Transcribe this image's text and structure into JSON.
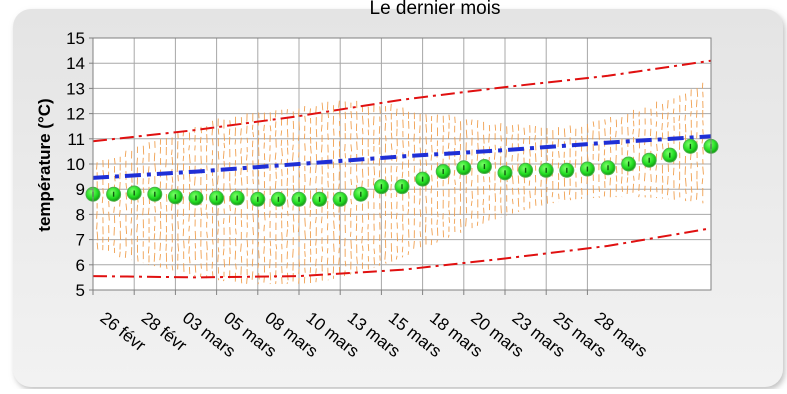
{
  "chart_data": {
    "type": "line",
    "title": "Le dernier mois",
    "ylabel": "température (°C)",
    "xlabel": "",
    "ylim": [
      5,
      15
    ],
    "yticks": [
      5,
      6,
      7,
      8,
      9,
      10,
      11,
      12,
      13,
      14,
      15
    ],
    "xlim": [
      0,
      30
    ],
    "grid": true,
    "legend": "none",
    "date_ticks": [
      {
        "x": 0,
        "label": "26 févr"
      },
      {
        "x": 2,
        "label": "28 févr"
      },
      {
        "x": 4,
        "label": "03 mars"
      },
      {
        "x": 6,
        "label": "05 mars"
      },
      {
        "x": 8,
        "label": "08 mars"
      },
      {
        "x": 10,
        "label": "10 mars"
      },
      {
        "x": 12,
        "label": "13 mars"
      },
      {
        "x": 14,
        "label": "15 mars"
      },
      {
        "x": 16,
        "label": "18 mars"
      },
      {
        "x": 18,
        "label": "20 mars"
      },
      {
        "x": 20,
        "label": "23 mars"
      },
      {
        "x": 22,
        "label": "25 mars"
      },
      {
        "x": 24,
        "label": "28 mars"
      }
    ],
    "series": [
      {
        "role": "daily-mean",
        "color": "#22dd22",
        "x": [
          0,
          1,
          2,
          3,
          4,
          5,
          6,
          7,
          8,
          9,
          10,
          11,
          12,
          13,
          14,
          15,
          16,
          17,
          18,
          19,
          20,
          21,
          22,
          23,
          24,
          25,
          26,
          27,
          28,
          29,
          30
        ],
        "values": [
          8.8,
          8.8,
          8.85,
          8.8,
          8.7,
          8.65,
          8.65,
          8.65,
          8.6,
          8.6,
          8.6,
          8.6,
          8.6,
          8.8,
          9.1,
          9.1,
          9.4,
          9.7,
          9.85,
          9.9,
          9.65,
          9.75,
          9.75,
          9.75,
          9.8,
          9.85,
          10.0,
          10.15,
          10.35,
          10.7,
          10.7
        ]
      },
      {
        "role": "normal-mean",
        "color": "#1f2fd6",
        "x": [
          0,
          5,
          10,
          15,
          20,
          25,
          30
        ],
        "values": [
          9.45,
          9.7,
          10.0,
          10.3,
          10.55,
          10.85,
          11.1
        ]
      },
      {
        "role": "upper-band",
        "color": "#e01010",
        "x": [
          0,
          5,
          10,
          15,
          20,
          25,
          30
        ],
        "values": [
          10.9,
          11.35,
          11.9,
          12.55,
          13.05,
          13.5,
          14.1
        ]
      },
      {
        "role": "lower-band",
        "color": "#e01010",
        "x": [
          0,
          5,
          10,
          15,
          20,
          25,
          30
        ],
        "values": [
          5.55,
          5.5,
          5.55,
          5.8,
          6.25,
          6.75,
          7.45
        ]
      }
    ],
    "spread_color": "#f0a050"
  }
}
